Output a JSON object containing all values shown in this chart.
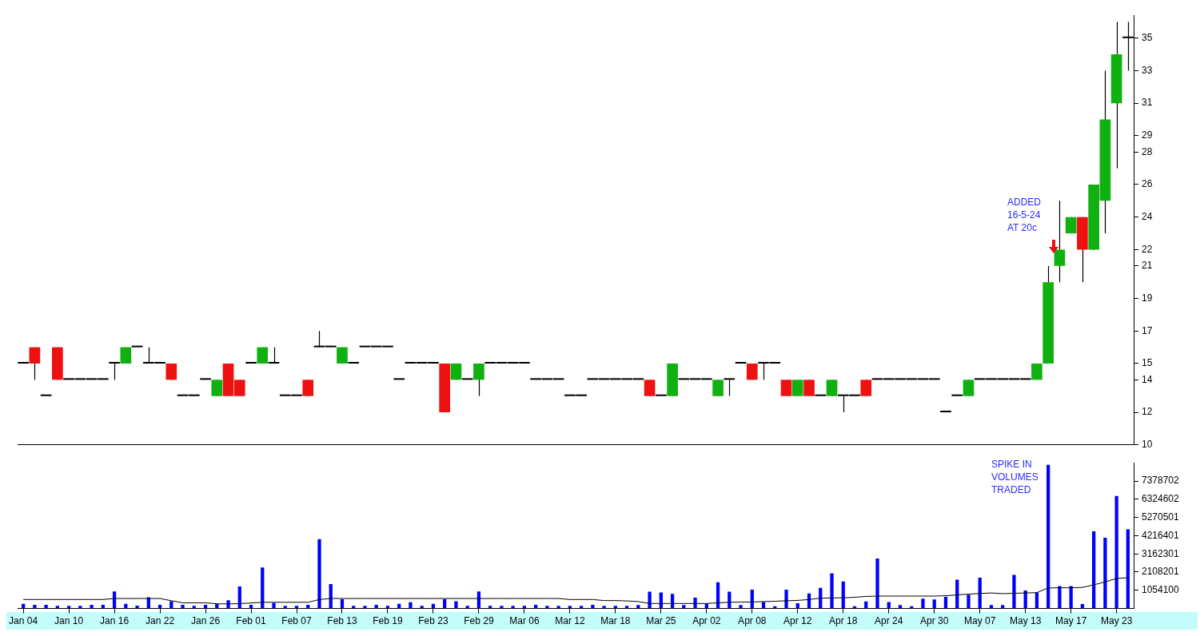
{
  "chart_data": [
    {
      "type": "candlestick",
      "categories": [
        null,
        null,
        null,
        null,
        null,
        null,
        null,
        null,
        null,
        null,
        null,
        null,
        null,
        null,
        null,
        null,
        null,
        null,
        null,
        null,
        null,
        null,
        null,
        null,
        null,
        null,
        null,
        null,
        null,
        null,
        null,
        null,
        null,
        null,
        null,
        null,
        null,
        null,
        null,
        null,
        null,
        null,
        null,
        null,
        null,
        null,
        null,
        null,
        null,
        null,
        null,
        null,
        null,
        null,
        null,
        null,
        null,
        null,
        null,
        null,
        null,
        null,
        null,
        null,
        null,
        null,
        null,
        null,
        null,
        null,
        null,
        null,
        null,
        null,
        null,
        null,
        null,
        null,
        null,
        null,
        null,
        null,
        null,
        null,
        null,
        null,
        null,
        null,
        null,
        null,
        null,
        null,
        null,
        null,
        null,
        null,
        null,
        null
      ],
      "ohlc": [
        [
          15,
          15,
          15,
          15
        ],
        [
          16,
          16,
          14,
          15
        ],
        [
          13,
          13,
          13,
          13
        ],
        [
          16,
          16,
          14,
          14
        ],
        [
          14,
          14,
          14,
          14
        ],
        [
          14,
          14,
          14,
          14
        ],
        [
          14,
          14,
          14,
          14
        ],
        [
          14,
          14,
          14,
          14
        ],
        [
          15,
          15,
          14,
          15
        ],
        [
          15,
          16,
          15,
          16
        ],
        [
          16,
          16,
          16,
          16
        ],
        [
          15,
          16,
          15,
          15
        ],
        [
          15,
          15,
          15,
          15
        ],
        [
          15,
          15,
          14,
          14
        ],
        [
          13,
          13,
          13,
          13
        ],
        [
          13,
          13,
          13,
          13
        ],
        [
          14,
          14,
          14,
          14
        ],
        [
          13,
          14,
          13,
          14
        ],
        [
          15,
          15,
          13,
          13
        ],
        [
          14,
          14,
          13,
          13
        ],
        [
          15,
          15,
          15,
          15
        ],
        [
          15,
          16,
          15,
          16
        ],
        [
          15,
          16,
          15,
          15
        ],
        [
          13,
          13,
          13,
          13
        ],
        [
          13,
          13,
          13,
          13
        ],
        [
          14,
          14,
          13,
          13
        ],
        [
          16,
          17,
          16,
          16
        ],
        [
          16,
          16,
          16,
          16
        ],
        [
          15,
          16,
          15,
          16
        ],
        [
          15,
          15,
          15,
          15
        ],
        [
          16,
          16,
          16,
          16
        ],
        [
          16,
          16,
          16,
          16
        ],
        [
          16,
          16,
          16,
          16
        ],
        [
          14,
          14,
          14,
          14
        ],
        [
          15,
          15,
          15,
          15
        ],
        [
          15,
          15,
          15,
          15
        ],
        [
          15,
          15,
          15,
          15
        ],
        [
          15,
          15,
          12,
          12
        ],
        [
          14,
          15,
          14,
          15
        ],
        [
          14,
          14,
          14,
          14
        ],
        [
          14,
          15,
          13,
          15
        ],
        [
          15,
          15,
          15,
          15
        ],
        [
          15,
          15,
          15,
          15
        ],
        [
          15,
          15,
          15,
          15
        ],
        [
          15,
          15,
          15,
          15
        ],
        [
          14,
          14,
          14,
          14
        ],
        [
          14,
          14,
          14,
          14
        ],
        [
          14,
          14,
          14,
          14
        ],
        [
          13,
          13,
          13,
          13
        ],
        [
          13,
          13,
          13,
          13
        ],
        [
          14,
          14,
          14,
          14
        ],
        [
          14,
          14,
          14,
          14
        ],
        [
          14,
          14,
          14,
          14
        ],
        [
          14,
          14,
          14,
          14
        ],
        [
          14,
          14,
          14,
          14
        ],
        [
          14,
          14,
          13,
          13
        ],
        [
          13,
          13,
          13,
          13
        ],
        [
          13,
          15,
          13,
          15
        ],
        [
          14,
          14,
          14,
          14
        ],
        [
          14,
          14,
          14,
          14
        ],
        [
          14,
          14,
          14,
          14
        ],
        [
          13,
          14,
          13,
          14
        ],
        [
          14,
          14,
          13,
          14
        ],
        [
          15,
          15,
          15,
          15
        ],
        [
          15,
          15,
          14,
          14
        ],
        [
          15,
          15,
          14,
          15
        ],
        [
          15,
          15,
          15,
          15
        ],
        [
          14,
          14,
          13,
          13
        ],
        [
          13,
          14,
          13,
          14
        ],
        [
          14,
          14,
          13,
          13
        ],
        [
          13,
          13,
          13,
          13
        ],
        [
          13,
          14,
          13,
          14
        ],
        [
          13,
          13,
          12,
          13
        ],
        [
          13,
          13,
          13,
          13
        ],
        [
          14,
          14,
          13,
          13
        ],
        [
          14,
          14,
          14,
          14
        ],
        [
          14,
          14,
          14,
          14
        ],
        [
          14,
          14,
          14,
          14
        ],
        [
          14,
          14,
          14,
          14
        ],
        [
          14,
          14,
          14,
          14
        ],
        [
          14,
          14,
          14,
          14
        ],
        [
          12,
          12,
          12,
          12
        ],
        [
          13,
          13,
          13,
          13
        ],
        [
          13,
          14,
          13,
          14
        ],
        [
          14,
          14,
          14,
          14
        ],
        [
          14,
          14,
          14,
          14
        ],
        [
          14,
          14,
          14,
          14
        ],
        [
          14,
          14,
          14,
          14
        ],
        [
          14,
          14,
          14,
          14
        ],
        [
          14,
          15,
          14,
          15
        ],
        [
          15,
          21,
          15,
          20
        ],
        [
          21,
          25,
          20,
          22
        ],
        [
          23,
          24,
          23,
          24
        ],
        [
          24,
          24,
          20,
          22
        ],
        [
          22,
          26,
          22,
          26
        ],
        [
          25,
          33,
          23,
          30
        ],
        [
          31,
          36,
          27,
          34
        ],
        [
          35,
          36,
          33,
          35
        ]
      ],
      "colors": [
        "#000000",
        "#ee1111",
        "#000000",
        "#ee1111",
        "#000000",
        "#000000",
        "#000000",
        "#000000",
        "#000000",
        "#11b011",
        "#000000",
        "#000000",
        "#000000",
        "#ee1111",
        "#000000",
        "#000000",
        "#000000",
        "#11b011",
        "#ee1111",
        "#ee1111",
        "#000000",
        "#11b011",
        "#000000",
        "#000000",
        "#000000",
        "#ee1111",
        "#000000",
        "#000000",
        "#11b011",
        "#000000",
        "#000000",
        "#000000",
        "#000000",
        "#000000",
        "#000000",
        "#000000",
        "#000000",
        "#ee1111",
        "#11b011",
        "#000000",
        "#11b011",
        "#000000",
        "#000000",
        "#000000",
        "#000000",
        "#000000",
        "#000000",
        "#000000",
        "#000000",
        "#000000",
        "#000000",
        "#000000",
        "#000000",
        "#000000",
        "#000000",
        "#ee1111",
        "#000000",
        "#11b011",
        "#000000",
        "#000000",
        "#000000",
        "#11b011",
        "#000000",
        "#000000",
        "#ee1111",
        "#000000",
        "#000000",
        "#ee1111",
        "#11b011",
        "#ee1111",
        "#000000",
        "#11b011",
        "#000000",
        "#000000",
        "#ee1111",
        "#000000",
        "#000000",
        "#000000",
        "#000000",
        "#000000",
        "#000000",
        "#000000",
        "#000000",
        "#11b011",
        "#000000",
        "#000000",
        "#000000",
        "#000000",
        "#000000",
        "#11b011",
        "#11b011",
        "#11b011",
        "#11b011",
        "#ee1111",
        "#11b011",
        "#11b011",
        "#11b011",
        "#000000"
      ],
      "ylim": [
        10,
        36.4
      ],
      "yticks": [
        10,
        12,
        14,
        15,
        17,
        19,
        21,
        22,
        24,
        26,
        28,
        29,
        31,
        33,
        35
      ],
      "tick_labels": "y",
      "grid": false,
      "legend": false,
      "annotations": [
        "ADDED\n16-5-24\nAT 20c"
      ]
    },
    {
      "type": "bar",
      "categories": [
        "Jan 04",
        null,
        null,
        null,
        "Jan 10",
        null,
        null,
        null,
        "Jan 16",
        null,
        null,
        null,
        "Jan 22",
        null,
        null,
        null,
        "Jan 26",
        null,
        null,
        null,
        "Feb 01",
        null,
        null,
        null,
        "Feb 07",
        null,
        null,
        null,
        "Feb 13",
        null,
        null,
        null,
        "Feb 19",
        null,
        null,
        null,
        "Feb 23",
        null,
        null,
        null,
        "Feb 29",
        null,
        null,
        null,
        "Mar 06",
        null,
        null,
        null,
        "Mar 12",
        null,
        null,
        null,
        "Mar 18",
        null,
        null,
        null,
        "Mar 25",
        null,
        null,
        null,
        "Apr 02",
        null,
        null,
        null,
        "Apr 08",
        null,
        null,
        null,
        "Apr 12",
        null,
        null,
        null,
        "Apr 18",
        null,
        null,
        null,
        "Apr 24",
        null,
        null,
        null,
        "Apr 30",
        null,
        null,
        null,
        "May 07",
        null,
        null,
        null,
        "May 13",
        null,
        null,
        null,
        "May 17",
        null,
        null,
        null,
        "May 23",
        null
      ],
      "series": [
        {
          "color": "#0000ff",
          "values": [
            270000,
            210000,
            210000,
            150000,
            150000,
            150000,
            210000,
            210000,
            990000,
            270000,
            170000,
            650000,
            210000,
            420000,
            210000,
            150000,
            210000,
            270000,
            480000,
            1280000,
            210000,
            2370000,
            330000,
            150000,
            150000,
            210000,
            4010000,
            1410000,
            540000,
            150000,
            150000,
            210000,
            150000,
            270000,
            360000,
            150000,
            270000,
            540000,
            420000,
            150000,
            990000,
            150000,
            150000,
            150000,
            150000,
            210000,
            150000,
            150000,
            150000,
            150000,
            210000,
            150000,
            150000,
            150000,
            200000,
            980000,
            930000,
            850000,
            200000,
            630000,
            280000,
            1520000,
            980000,
            200000,
            1090000,
            370000,
            130000,
            1090000,
            300000,
            870000,
            1190000,
            2040000,
            1560000,
            130000,
            410000,
            2890000,
            370000,
            200000,
            130000,
            570000,
            520000,
            670000,
            1670000,
            800000,
            1780000,
            200000,
            200000,
            1950000,
            1040000,
            930000,
            8310000,
            1300000,
            1300000,
            260000,
            4470000,
            4100000,
            6510000,
            4580000
          ]
        },
        {
          "type": "line",
          "color": "#000000",
          "values": [
            520000,
            520000,
            520000,
            520000,
            520000,
            520000,
            520000,
            520000,
            580000,
            580000,
            580000,
            580000,
            580000,
            450000,
            330000,
            330000,
            330000,
            270000,
            270000,
            280000,
            320000,
            360000,
            360000,
            360000,
            360000,
            360000,
            520000,
            580000,
            580000,
            580000,
            580000,
            580000,
            580000,
            580000,
            580000,
            580000,
            580000,
            580000,
            580000,
            580000,
            580000,
            580000,
            580000,
            580000,
            580000,
            580000,
            580000,
            580000,
            520000,
            520000,
            520000,
            460000,
            460000,
            440000,
            400000,
            290000,
            290000,
            290000,
            290000,
            290000,
            290000,
            330000,
            360000,
            370000,
            380000,
            400000,
            420000,
            450000,
            470000,
            520000,
            600000,
            610000,
            620000,
            650000,
            700000,
            720000,
            720000,
            720000,
            720000,
            720000,
            720000,
            740000,
            790000,
            830000,
            870000,
            900000,
            860000,
            880000,
            900000,
            920000,
            1190000,
            1200000,
            1200000,
            1220000,
            1370000,
            1540000,
            1740000,
            1780000
          ]
        }
      ],
      "ylim": [
        0,
        8432803
      ],
      "yticks": [
        1054100,
        2108201,
        3162301,
        4216401,
        5270501,
        6324602,
        7378702
      ],
      "grid": false,
      "legend": false,
      "marker": "none",
      "annotations": [
        "SPIKE IN\nVOLUMES\nTRADED"
      ]
    }
  ]
}
